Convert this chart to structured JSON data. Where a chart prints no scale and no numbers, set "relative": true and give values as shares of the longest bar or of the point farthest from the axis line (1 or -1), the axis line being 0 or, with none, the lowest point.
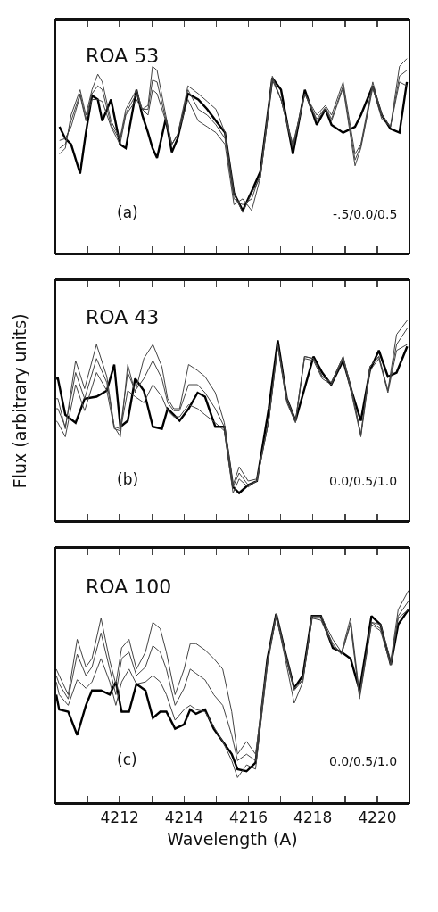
{
  "chart_data": [
    {
      "type": "line",
      "relative": true,
      "annotations": [
        "ROA 53",
        "(a)",
        "-.5/0.0/0.5"
      ],
      "tick_labels": false,
      "grid": false,
      "marker": "none",
      "line_style": "solid",
      "xlim": [
        4210,
        4221
      ],
      "xticks": [
        {
          "value": 4211,
          "label": null
        },
        {
          "value": 4212,
          "label": null
        },
        {
          "value": 4213,
          "label": null
        },
        {
          "value": 4214,
          "label": null
        },
        {
          "value": 4215,
          "label": null
        },
        {
          "value": 4216,
          "label": null
        },
        {
          "value": 4217,
          "label": null
        },
        {
          "value": 4218,
          "label": null
        },
        {
          "value": 4219,
          "label": null
        },
        {
          "value": 4220,
          "label": null
        },
        {
          "value": 4221,
          "label": null
        }
      ],
      "x": [
        4210.13,
        4210.31,
        4210.49,
        4210.77,
        4210.95,
        4211.14,
        4211.32,
        4211.46,
        4211.73,
        4212.01,
        4212.19,
        4212.52,
        4212.7,
        4212.88,
        4213.02,
        4213.16,
        4213.43,
        4213.62,
        4213.8,
        4214.12,
        4214.44,
        4214.72,
        4214.99,
        4215.27,
        4215.55,
        4215.82,
        4216.1,
        4216.37,
        4216.74,
        4217.01,
        4217.38,
        4217.75,
        4218.12,
        4218.39,
        4218.58,
        4218.94,
        4219.31,
        4219.49,
        4219.86,
        4220.14,
        4220.41,
        4220.69,
        4220.92
      ],
      "series": [
        {
          "color": "#000000",
          "values": [
            0.65,
            0.59,
            0.56,
            0.41,
            0.62,
            0.81,
            0.79,
            0.68,
            0.79,
            0.56,
            0.54,
            0.84,
            0.71,
            0.62,
            0.54,
            0.49,
            0.69,
            0.52,
            0.59,
            0.82,
            0.79,
            0.74,
            0.68,
            0.62,
            0.31,
            0.22,
            0.32,
            0.42,
            0.9,
            0.84,
            0.51,
            0.84,
            0.66,
            0.74,
            0.66,
            0.62,
            0.65,
            0.71,
            0.86,
            0.71,
            0.64,
            0.62,
            0.88
          ]
        },
        {
          "color": "#444444",
          "values": [
            0.51,
            0.54,
            0.71,
            0.84,
            0.71,
            0.84,
            0.92,
            0.88,
            0.68,
            0.59,
            0.74,
            0.84,
            0.74,
            0.76,
            0.96,
            0.94,
            0.71,
            0.56,
            0.61,
            0.86,
            0.82,
            0.78,
            0.74,
            0.62,
            0.31,
            0.21,
            0.31,
            0.39,
            0.91,
            0.79,
            0.56,
            0.82,
            0.71,
            0.76,
            0.71,
            0.88,
            0.51,
            0.56,
            0.88,
            0.71,
            0.65,
            0.96,
            1
          ]
        },
        {
          "color": "#444444",
          "values": [
            0.54,
            0.56,
            0.68,
            0.82,
            0.69,
            0.82,
            0.86,
            0.84,
            0.66,
            0.58,
            0.72,
            0.82,
            0.74,
            0.74,
            0.89,
            0.88,
            0.69,
            0.56,
            0.61,
            0.84,
            0.74,
            0.71,
            0.66,
            0.59,
            0.28,
            0.25,
            0.28,
            0.41,
            0.9,
            0.79,
            0.55,
            0.82,
            0.69,
            0.75,
            0.69,
            0.86,
            0.48,
            0.55,
            0.86,
            0.71,
            0.65,
            0.91,
            0.94
          ]
        },
        {
          "color": "#444444",
          "values": [
            0.58,
            0.59,
            0.65,
            0.81,
            0.68,
            0.79,
            0.79,
            0.78,
            0.65,
            0.56,
            0.71,
            0.79,
            0.74,
            0.71,
            0.84,
            0.82,
            0.68,
            0.56,
            0.61,
            0.79,
            0.68,
            0.65,
            0.62,
            0.56,
            0.25,
            0.28,
            0.22,
            0.39,
            0.89,
            0.79,
            0.54,
            0.82,
            0.68,
            0.74,
            0.68,
            0.85,
            0.45,
            0.54,
            0.85,
            0.69,
            0.65,
            0.88,
            0.86
          ]
        }
      ]
    },
    {
      "type": "line",
      "relative": true,
      "annotations": [
        "ROA 43",
        "(b)",
        "0.0/0.5/1.0"
      ],
      "ylabel": "Flux (arbitrary units)",
      "tick_labels": false,
      "grid": false,
      "marker": "none",
      "line_style": "solid",
      "xlim": [
        4210,
        4221
      ],
      "xticks": [
        {
          "value": 4211,
          "label": null
        },
        {
          "value": 4212,
          "label": null
        },
        {
          "value": 4213,
          "label": null
        },
        {
          "value": 4214,
          "label": null
        },
        {
          "value": 4215,
          "label": null
        },
        {
          "value": 4216,
          "label": null
        },
        {
          "value": 4217,
          "label": null
        },
        {
          "value": 4218,
          "label": null
        },
        {
          "value": 4219,
          "label": null
        },
        {
          "value": 4220,
          "label": null
        },
        {
          "value": 4221,
          "label": null
        }
      ],
      "x": [
        4210.03,
        4210.08,
        4210.31,
        4210.63,
        4210.91,
        4211.28,
        4211.6,
        4211.83,
        4212.02,
        4212.25,
        4212.48,
        4212.75,
        4213.03,
        4213.31,
        4213.49,
        4213.68,
        4213.86,
        4214.14,
        4214.42,
        4214.65,
        4214.97,
        4215.25,
        4215.52,
        4215.71,
        4215.99,
        4216.26,
        4216.63,
        4216.91,
        4217.19,
        4217.46,
        4217.74,
        4218.02,
        4218.29,
        4218.57,
        4218.94,
        4219.22,
        4219.49,
        4219.77,
        4220.05,
        4220.33,
        4220.6,
        4220.93
      ],
      "series": [
        {
          "color": "#000000",
          "values": [
            0.71,
            0.71,
            0.53,
            0.49,
            0.61,
            0.62,
            0.65,
            0.78,
            0.47,
            0.5,
            0.71,
            0.65,
            0.47,
            0.46,
            0.56,
            0.53,
            0.5,
            0.56,
            0.64,
            0.62,
            0.47,
            0.47,
            0.17,
            0.14,
            0.18,
            0.2,
            0.56,
            0.9,
            0.61,
            0.5,
            0.66,
            0.82,
            0.74,
            0.68,
            0.8,
            0.64,
            0.5,
            0.75,
            0.85,
            0.72,
            0.74,
            0.87
          ]
        },
        {
          "color": "#444444",
          "values": [
            0.61,
            0.61,
            0.46,
            0.8,
            0.66,
            0.88,
            0.72,
            0.47,
            0.42,
            0.78,
            0.64,
            0.81,
            0.88,
            0.77,
            0.61,
            0.56,
            0.56,
            0.78,
            0.75,
            0.72,
            0.64,
            0.49,
            0.18,
            0.27,
            0.2,
            0.21,
            0.5,
            0.88,
            0.61,
            0.5,
            0.82,
            0.81,
            0.72,
            0.69,
            0.82,
            0.64,
            0.43,
            0.77,
            0.82,
            0.65,
            0.93,
            1
          ]
        },
        {
          "color": "#444444",
          "values": [
            0.56,
            0.56,
            0.47,
            0.74,
            0.61,
            0.81,
            0.69,
            0.47,
            0.46,
            0.74,
            0.65,
            0.71,
            0.8,
            0.71,
            0.59,
            0.55,
            0.55,
            0.68,
            0.68,
            0.64,
            0.56,
            0.47,
            0.17,
            0.24,
            0.18,
            0.2,
            0.5,
            0.88,
            0.61,
            0.5,
            0.82,
            0.81,
            0.72,
            0.69,
            0.82,
            0.64,
            0.43,
            0.77,
            0.82,
            0.65,
            0.88,
            0.96
          ]
        },
        {
          "color": "#444444",
          "values": [
            0.5,
            0.49,
            0.42,
            0.68,
            0.55,
            0.74,
            0.65,
            0.46,
            0.45,
            0.65,
            0.62,
            0.59,
            0.68,
            0.62,
            0.55,
            0.52,
            0.52,
            0.58,
            0.56,
            0.53,
            0.49,
            0.45,
            0.14,
            0.21,
            0.17,
            0.2,
            0.5,
            0.87,
            0.59,
            0.49,
            0.81,
            0.8,
            0.71,
            0.68,
            0.81,
            0.62,
            0.42,
            0.75,
            0.81,
            0.64,
            0.85,
            0.88
          ]
        }
      ]
    },
    {
      "type": "line",
      "relative": true,
      "annotations": [
        "ROA 100",
        "(c)",
        "0.0/0.5/1.0"
      ],
      "xlabel": "Wavelength (A)",
      "tick_labels": "x",
      "grid": false,
      "marker": "none",
      "line_style": "solid",
      "xlim": [
        4210,
        4221
      ],
      "xticks": [
        {
          "value": 4211,
          "label": null
        },
        4212,
        {
          "value": 4213,
          "label": null
        },
        4214,
        {
          "value": 4215,
          "label": null
        },
        4216,
        {
          "value": 4217,
          "label": null
        },
        4218,
        {
          "value": 4219,
          "label": null
        },
        4220,
        {
          "value": 4221,
          "label": null
        }
      ],
      "x": [
        4210.03,
        4210.12,
        4210.4,
        4210.68,
        4210.95,
        4211.14,
        4211.42,
        4211.69,
        4211.88,
        4212.06,
        4212.29,
        4212.52,
        4212.8,
        4213.03,
        4213.26,
        4213.45,
        4213.72,
        4214.0,
        4214.19,
        4214.37,
        4214.65,
        4214.92,
        4215.2,
        4215.48,
        4215.66,
        4215.94,
        4216.22,
        4216.59,
        4216.86,
        4217.14,
        4217.42,
        4217.69,
        4217.97,
        4218.25,
        4218.62,
        4218.89,
        4219.17,
        4219.45,
        4219.82,
        4220.1,
        4220.42,
        4220.65,
        4220.97
      ],
      "series": [
        {
          "color": "#000000",
          "values": [
            0.51,
            0.44,
            0.43,
            0.32,
            0.46,
            0.53,
            0.53,
            0.51,
            0.57,
            0.43,
            0.43,
            0.56,
            0.53,
            0.4,
            0.43,
            0.43,
            0.35,
            0.37,
            0.44,
            0.42,
            0.44,
            0.35,
            0.29,
            0.23,
            0.16,
            0.15,
            0.19,
            0.68,
            0.89,
            0.71,
            0.54,
            0.6,
            0.88,
            0.88,
            0.73,
            0.71,
            0.68,
            0.53,
            0.88,
            0.84,
            0.65,
            0.84,
            0.91
          ]
        },
        {
          "color": "#444444",
          "values": [
            0.63,
            0.6,
            0.51,
            0.77,
            0.64,
            0.68,
            0.87,
            0.67,
            0.56,
            0.73,
            0.77,
            0.63,
            0.71,
            0.85,
            0.82,
            0.71,
            0.51,
            0.63,
            0.75,
            0.75,
            0.72,
            0.68,
            0.63,
            0.43,
            0.23,
            0.29,
            0.23,
            0.67,
            0.89,
            0.71,
            0.54,
            0.58,
            0.88,
            0.88,
            0.77,
            0.71,
            0.87,
            0.51,
            0.85,
            0.84,
            0.67,
            0.91,
            1
          ]
        },
        {
          "color": "#444444",
          "values": [
            0.6,
            0.56,
            0.49,
            0.7,
            0.6,
            0.64,
            0.8,
            0.63,
            0.51,
            0.68,
            0.71,
            0.6,
            0.64,
            0.74,
            0.71,
            0.63,
            0.46,
            0.54,
            0.63,
            0.61,
            0.58,
            0.51,
            0.46,
            0.32,
            0.2,
            0.23,
            0.2,
            0.67,
            0.88,
            0.7,
            0.53,
            0.58,
            0.87,
            0.87,
            0.75,
            0.7,
            0.85,
            0.5,
            0.85,
            0.82,
            0.65,
            0.88,
            0.95
          ]
        },
        {
          "color": "#444444",
          "values": [
            0.57,
            0.51,
            0.46,
            0.58,
            0.54,
            0.57,
            0.68,
            0.57,
            0.46,
            0.57,
            0.63,
            0.56,
            0.57,
            0.6,
            0.57,
            0.51,
            0.39,
            0.44,
            0.46,
            0.44,
            0.43,
            0.36,
            0.29,
            0.2,
            0.12,
            0.18,
            0.16,
            0.65,
            0.88,
            0.68,
            0.47,
            0.57,
            0.87,
            0.86,
            0.74,
            0.7,
            0.84,
            0.49,
            0.84,
            0.81,
            0.65,
            0.87,
            0.91
          ]
        }
      ]
    }
  ]
}
